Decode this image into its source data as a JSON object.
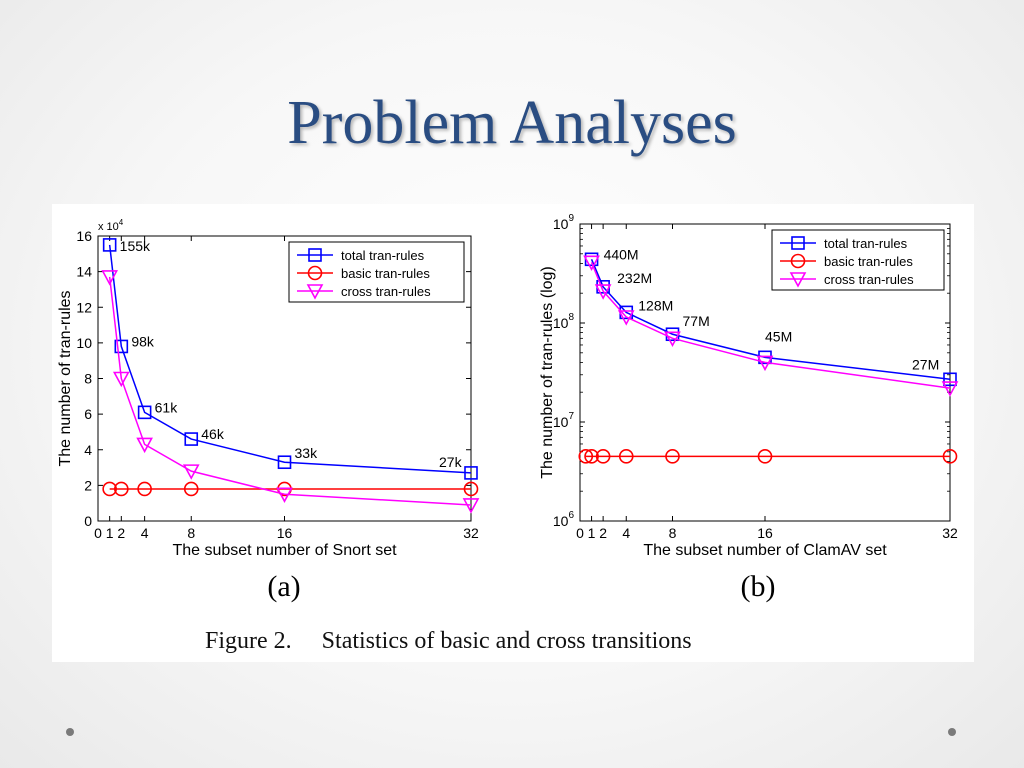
{
  "slide": {
    "title": "Problem Analyses",
    "caption_num": "Figure 2.",
    "caption_text": "Statistics of basic and cross transitions"
  },
  "chart_data": [
    {
      "type": "line",
      "panel_label": "(a)",
      "xlabel": "The subset number of Snort set",
      "ylabel": "The number of tran-rules",
      "y_multiplier": "x 10",
      "y_multiplier_exp": "4",
      "x_ticks": [
        0,
        1,
        2,
        4,
        8,
        16,
        32
      ],
      "y_ticks": [
        0,
        2,
        4,
        6,
        8,
        10,
        12,
        14,
        16
      ],
      "xlim": [
        0,
        32
      ],
      "ylim": [
        0,
        16
      ],
      "legend_position": "top-right",
      "series": [
        {
          "name": "total tran-rules",
          "color": "#0000ff",
          "marker": "square",
          "x": [
            1,
            2,
            4,
            8,
            16,
            32
          ],
          "y": [
            15.5,
            9.8,
            6.1,
            4.6,
            3.3,
            2.7
          ]
        },
        {
          "name": "basic tran-rules",
          "color": "#ff0000",
          "marker": "circle",
          "x": [
            1,
            2,
            4,
            8,
            16,
            32
          ],
          "y": [
            1.8,
            1.8,
            1.8,
            1.8,
            1.8,
            1.8
          ]
        },
        {
          "name": "cross tran-rules",
          "color": "#ff00ff",
          "marker": "triangle-down",
          "x": [
            1,
            2,
            4,
            8,
            16,
            32
          ],
          "y": [
            13.7,
            8.0,
            4.3,
            2.8,
            1.5,
            0.9
          ]
        }
      ],
      "annotations": [
        {
          "x": 1,
          "y": 15.5,
          "text": "155k"
        },
        {
          "x": 2,
          "y": 9.8,
          "text": "98k"
        },
        {
          "x": 4,
          "y": 6.1,
          "text": "61k"
        },
        {
          "x": 8,
          "y": 4.6,
          "text": "46k"
        },
        {
          "x": 16,
          "y": 3.3,
          "text": "33k"
        },
        {
          "x": 32,
          "y": 2.7,
          "text": "27k"
        }
      ]
    },
    {
      "type": "line",
      "panel_label": "(b)",
      "xlabel": "The subset number of ClamAV set",
      "ylabel": "The number of tran-rules (log)",
      "yscale": "log",
      "x_ticks": [
        0,
        1,
        2,
        4,
        8,
        16,
        32
      ],
      "y_ticks": [
        1000000,
        10000000,
        100000000,
        1000000000
      ],
      "y_tick_labels": [
        {
          "base": "10",
          "exp": "6"
        },
        {
          "base": "10",
          "exp": "7"
        },
        {
          "base": "10",
          "exp": "8"
        },
        {
          "base": "10",
          "exp": "9"
        }
      ],
      "xlim": [
        0,
        32
      ],
      "ylim": [
        1000000,
        1000000000
      ],
      "legend_position": "top-right",
      "series": [
        {
          "name": "total tran-rules",
          "color": "#0000ff",
          "marker": "square",
          "x": [
            1,
            2,
            4,
            8,
            16,
            32
          ],
          "y": [
            440000000,
            232000000,
            128000000,
            77000000,
            45000000,
            27000000
          ]
        },
        {
          "name": "basic tran-rules",
          "color": "#ff0000",
          "marker": "circle",
          "x": [
            0.5,
            1,
            2,
            4,
            8,
            16,
            32
          ],
          "y": [
            4500000,
            4500000,
            4500000,
            4500000,
            4500000,
            4500000,
            4500000
          ]
        },
        {
          "name": "cross tran-rules",
          "color": "#ff00ff",
          "marker": "triangle-down",
          "x": [
            1,
            2,
            4,
            8,
            16,
            32
          ],
          "y": [
            410000000,
            210000000,
            115000000,
            70000000,
            40000000,
            22000000
          ]
        }
      ],
      "annotations": [
        {
          "x": 1,
          "y": 440000000,
          "text": "440M"
        },
        {
          "x": 2,
          "y": 232000000,
          "text": "232M"
        },
        {
          "x": 4,
          "y": 128000000,
          "text": "128M"
        },
        {
          "x": 8,
          "y": 77000000,
          "text": "77M"
        },
        {
          "x": 16,
          "y": 45000000,
          "text": "45M"
        },
        {
          "x": 32,
          "y": 27000000,
          "text": "27M"
        }
      ]
    }
  ]
}
